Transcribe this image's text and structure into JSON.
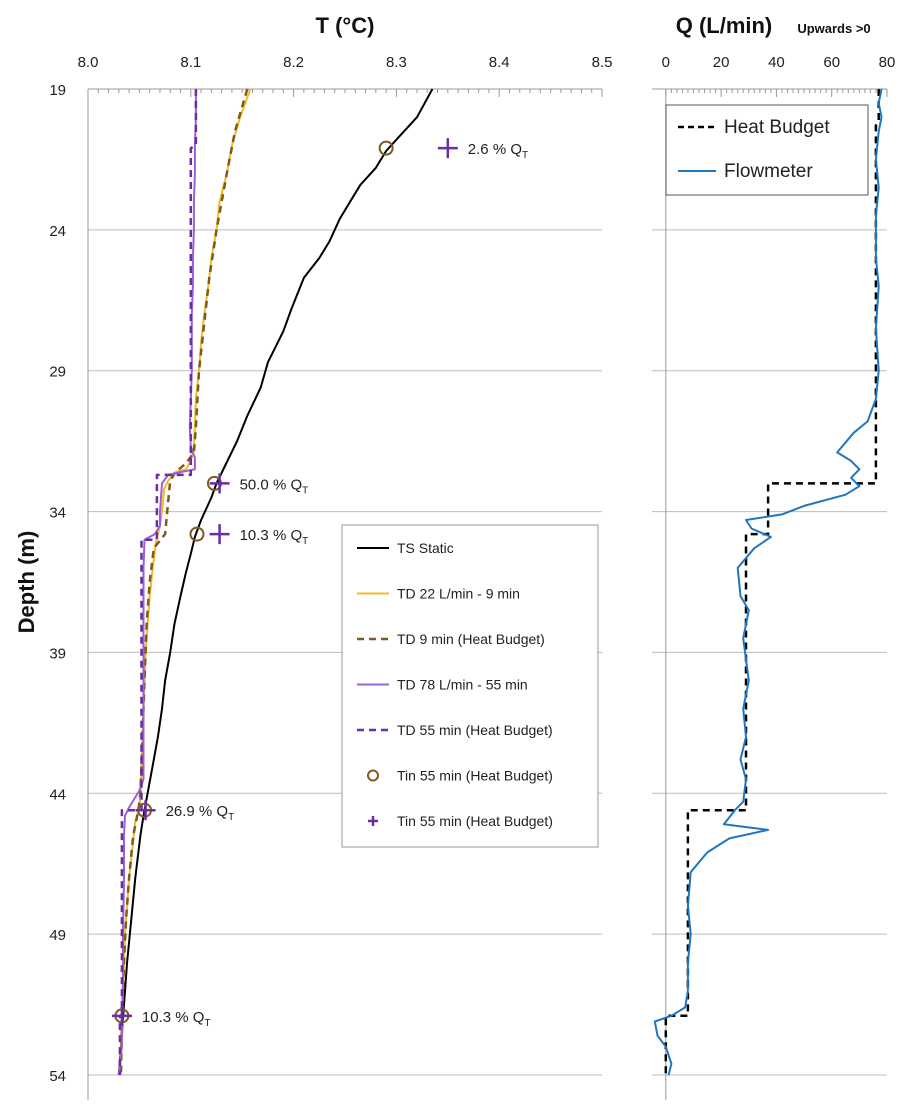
{
  "chart_data": [
    {
      "type": "line",
      "title": "T (°C)",
      "ylabel": "Depth (m)",
      "xlim": [
        8.0,
        8.5
      ],
      "ylim": [
        19,
        54
      ],
      "y_inverted": true,
      "x_ticks": [
        "8.0",
        "8.1",
        "8.2",
        "8.3",
        "8.4",
        "8.5"
      ],
      "y_ticks": [
        "19",
        "24",
        "29",
        "34",
        "39",
        "44",
        "49",
        "54"
      ],
      "grid": "horizontal",
      "legend_position": "center-right",
      "colors": {
        "ts_static": "#000000",
        "td22": "#f5b921",
        "td9_hb": "#7d5a1e",
        "tin55_circle": "#7d5a1e",
        "td78": "#9b5fd6",
        "td55_hb": "#6a2ea3",
        "tin55_plus": "#6a2ea3"
      },
      "series": [
        {
          "name": "TS Static",
          "style": "solid",
          "color": "#000000",
          "points": [
            [
              8.335,
              19
            ],
            [
              8.32,
              20
            ],
            [
              8.305,
              20.6
            ],
            [
              8.29,
              21.2
            ],
            [
              8.28,
              21.8
            ],
            [
              8.265,
              22.4
            ],
            [
              8.255,
              23
            ],
            [
              8.245,
              23.6
            ],
            [
              8.235,
              24.4
            ],
            [
              8.225,
              25
            ],
            [
              8.21,
              25.7
            ],
            [
              8.198,
              26.8
            ],
            [
              8.19,
              27.6
            ],
            [
              8.175,
              28.7
            ],
            [
              8.168,
              29.6
            ],
            [
              8.155,
              30.6
            ],
            [
              8.145,
              31.5
            ],
            [
              8.133,
              32.4
            ],
            [
              8.125,
              33
            ],
            [
              8.12,
              33.5
            ],
            [
              8.11,
              34.3
            ],
            [
              8.104,
              34.9
            ],
            [
              8.1,
              35.5
            ],
            [
              8.095,
              36.2
            ],
            [
              8.09,
              37
            ],
            [
              8.084,
              38
            ],
            [
              8.08,
              39
            ],
            [
              8.075,
              40
            ],
            [
              8.072,
              41
            ],
            [
              8.068,
              42
            ],
            [
              8.063,
              43
            ],
            [
              8.058,
              44
            ],
            [
              8.054,
              44.8
            ],
            [
              8.051,
              45.5
            ],
            [
              8.046,
              47
            ],
            [
              8.042,
              48.5
            ],
            [
              8.038,
              50
            ],
            [
              8.035,
              51.5
            ],
            [
              8.033,
              52.5
            ],
            [
              8.031,
              53.5
            ],
            [
              8.03,
              54
            ]
          ]
        },
        {
          "name": "TD 22 L/min - 9 min",
          "style": "solid",
          "color": "#f5b921",
          "points": [
            [
              8.158,
              19
            ],
            [
              8.148,
              20
            ],
            [
              8.14,
              21
            ],
            [
              8.135,
              22
            ],
            [
              8.128,
              23
            ],
            [
              8.125,
              24
            ],
            [
              8.12,
              25
            ],
            [
              8.117,
              26
            ],
            [
              8.113,
              27
            ],
            [
              8.11,
              28
            ],
            [
              8.108,
              29
            ],
            [
              8.105,
              30
            ],
            [
              8.104,
              31
            ],
            [
              8.103,
              31.7
            ],
            [
              8.1,
              32.2
            ],
            [
              8.095,
              32.5
            ],
            [
              8.085,
              32.6
            ],
            [
              8.078,
              32.9
            ],
            [
              8.074,
              33.2
            ],
            [
              8.072,
              34
            ],
            [
              8.07,
              34.5
            ],
            [
              8.066,
              35.1
            ],
            [
              8.063,
              36
            ],
            [
              8.06,
              37
            ],
            [
              8.058,
              38
            ],
            [
              8.056,
              39
            ],
            [
              8.055,
              40
            ],
            [
              8.054,
              41
            ],
            [
              8.053,
              42
            ],
            [
              8.052,
              43
            ],
            [
              8.051,
              44
            ],
            [
              8.05,
              44.5
            ],
            [
              8.046,
              45
            ],
            [
              8.043,
              46
            ],
            [
              8.04,
              47
            ],
            [
              8.038,
              48
            ],
            [
              8.036,
              49
            ],
            [
              8.035,
              50
            ],
            [
              8.034,
              51
            ],
            [
              8.033,
              52
            ],
            [
              8.032,
              53
            ],
            [
              8.031,
              54
            ]
          ]
        },
        {
          "name": "TD 9 min (Heat Budget)",
          "style": "dashed",
          "color": "#7d5a1e",
          "points": [
            [
              8.155,
              19
            ],
            [
              8.143,
              20.5
            ],
            [
              8.135,
              22
            ],
            [
              8.125,
              24
            ],
            [
              8.118,
              25.7
            ],
            [
              8.114,
              27
            ],
            [
              8.108,
              29
            ],
            [
              8.105,
              31
            ],
            [
              8.103,
              31.9
            ],
            [
              8.095,
              32.3
            ],
            [
              8.085,
              32.6
            ],
            [
              8.08,
              32.9
            ],
            [
              8.077,
              34
            ],
            [
              8.075,
              34.8
            ],
            [
              8.064,
              35.3
            ],
            [
              8.06,
              36.5
            ],
            [
              8.057,
              38
            ],
            [
              8.055,
              40
            ],
            [
              8.053,
              42
            ],
            [
              8.051,
              44
            ],
            [
              8.049,
              44.6
            ],
            [
              8.044,
              45.5
            ],
            [
              8.04,
              47
            ],
            [
              8.037,
              48.5
            ],
            [
              8.035,
              50
            ],
            [
              8.034,
              51
            ],
            [
              8.033,
              52.5
            ],
            [
              8.032,
              54
            ]
          ]
        },
        {
          "name": "TD 78 L/min - 55 min",
          "style": "solid",
          "color": "#9b5fd6",
          "points": [
            [
              8.105,
              19
            ],
            [
              8.105,
              20
            ],
            [
              8.104,
              21
            ],
            [
              8.104,
              22
            ],
            [
              8.103,
              23
            ],
            [
              8.103,
              24
            ],
            [
              8.102,
              25
            ],
            [
              8.102,
              26
            ],
            [
              8.101,
              27
            ],
            [
              8.101,
              28
            ],
            [
              8.101,
              29
            ],
            [
              8.1,
              30
            ],
            [
              8.099,
              31
            ],
            [
              8.1,
              31.7
            ],
            [
              8.104,
              32.1
            ],
            [
              8.104,
              32.5
            ],
            [
              8.09,
              32.6
            ],
            [
              8.078,
              32.7
            ],
            [
              8.072,
              33
            ],
            [
              8.071,
              33.5
            ],
            [
              8.07,
              34
            ],
            [
              8.07,
              34.5
            ],
            [
              8.065,
              34.8
            ],
            [
              8.055,
              35
            ],
            [
              8.054,
              36
            ],
            [
              8.054,
              38
            ],
            [
              8.054,
              40
            ],
            [
              8.054,
              42
            ],
            [
              8.054,
              43.5
            ],
            [
              8.05,
              43.9
            ],
            [
              8.045,
              44.2
            ],
            [
              8.04,
              44.5
            ],
            [
              8.036,
              44.8
            ],
            [
              8.035,
              45.5
            ],
            [
              8.035,
              47
            ],
            [
              8.034,
              49
            ],
            [
              8.034,
              51
            ],
            [
              8.033,
              52
            ],
            [
              8.033,
              53
            ],
            [
              8.031,
              53.6
            ],
            [
              8.03,
              54
            ]
          ]
        },
        {
          "name": "TD 55 min (Heat Budget)",
          "style": "dashed",
          "color": "#6a2ea3",
          "points": [
            [
              8.105,
              19
            ],
            [
              8.105,
              21
            ],
            [
              8.1,
              21.1
            ],
            [
              8.1,
              32.7
            ],
            [
              8.067,
              32.7
            ],
            [
              8.067,
              35
            ],
            [
              8.052,
              35
            ],
            [
              8.052,
              44.6
            ],
            [
              8.033,
              44.6
            ],
            [
              8.033,
              51.9
            ],
            [
              8.031,
              51.9
            ],
            [
              8.031,
              54
            ]
          ]
        },
        {
          "name": "Tin 55 min (Heat Budget)",
          "style": "circle",
          "color": "#7d5a1e",
          "points": [
            [
              8.29,
              21.1
            ],
            [
              8.123,
              33
            ],
            [
              8.106,
              34.8
            ],
            [
              8.055,
              44.6
            ],
            [
              8.033,
              51.9
            ]
          ]
        },
        {
          "name": "Tin 55 min (Heat Budget)",
          "style": "plus",
          "color": "#6a2ea3",
          "points": [
            [
              8.35,
              21.1
            ],
            [
              8.128,
              33
            ],
            [
              8.128,
              34.8
            ],
            [
              8.056,
              44.6
            ],
            [
              8.033,
              51.9
            ]
          ]
        }
      ],
      "annotations": [
        {
          "text": "2.6 % Q",
          "sub": "T",
          "x": 8.35,
          "y": 21.1
        },
        {
          "text": "50.0 % Q",
          "sub": "T",
          "x": 8.128,
          "y": 33
        },
        {
          "text": "10.3 % Q",
          "sub": "T",
          "x": 8.128,
          "y": 34.8
        },
        {
          "text": "26.9 % Q",
          "sub": "T",
          "x": 8.056,
          "y": 44.6
        },
        {
          "text": "10.3 % Q",
          "sub": "T",
          "x": 8.033,
          "y": 51.9
        }
      ]
    },
    {
      "type": "line",
      "title": "Q (L/min)",
      "subtitle": "Upwards >0",
      "xlim": [
        -5,
        80
      ],
      "ylim": [
        19,
        54
      ],
      "y_inverted": true,
      "x_ticks": [
        "0",
        "20",
        "40",
        "60",
        "80"
      ],
      "grid": "horizontal",
      "legend_position": "top-right",
      "series": [
        {
          "name": "Heat Budget",
          "style": "dashed",
          "color": "#000000",
          "points": [
            [
              77,
              19
            ],
            [
              77,
              20.1
            ],
            [
              76,
              20.3
            ],
            [
              76,
              33
            ],
            [
              37,
              33
            ],
            [
              37,
              34.8
            ],
            [
              29,
              34.8
            ],
            [
              29,
              44.6
            ],
            [
              8,
              44.6
            ],
            [
              8,
              51.9
            ],
            [
              0,
              51.9
            ],
            [
              0,
              54
            ]
          ]
        },
        {
          "name": "Flowmeter",
          "style": "solid",
          "color": "#1f77c2",
          "points": [
            [
              78,
              19
            ],
            [
              77,
              19.5
            ],
            [
              78,
              20
            ],
            [
              77,
              20.5
            ],
            [
              76,
              21.5
            ],
            [
              77,
              22.5
            ],
            [
              76,
              23.5
            ],
            [
              76,
              25
            ],
            [
              77,
              26
            ],
            [
              76,
              27.5
            ],
            [
              77,
              29
            ],
            [
              76,
              30
            ],
            [
              73,
              30.8
            ],
            [
              68,
              31.2
            ],
            [
              62,
              31.9
            ],
            [
              67,
              32.2
            ],
            [
              70,
              32.5
            ],
            [
              67,
              32.8
            ],
            [
              70,
              33.1
            ],
            [
              65,
              33.4
            ],
            [
              50,
              33.8
            ],
            [
              42,
              34.1
            ],
            [
              29,
              34.3
            ],
            [
              31,
              34.6
            ],
            [
              38,
              34.9
            ],
            [
              32,
              35.3
            ],
            [
              26,
              36
            ],
            [
              27,
              37
            ],
            [
              30,
              37.5
            ],
            [
              28,
              38.5
            ],
            [
              30,
              40
            ],
            [
              28,
              41
            ],
            [
              29,
              42
            ],
            [
              27,
              42.8
            ],
            [
              29,
              43.5
            ],
            [
              28,
              44.3
            ],
            [
              25,
              44.6
            ],
            [
              21,
              45.1
            ],
            [
              37,
              45.3
            ],
            [
              23,
              45.6
            ],
            [
              15,
              46.1
            ],
            [
              9,
              46.8
            ],
            [
              8,
              48
            ],
            [
              9,
              49
            ],
            [
              8,
              50
            ],
            [
              8,
              51
            ],
            [
              7,
              51.6
            ],
            [
              2,
              51.9
            ],
            [
              -4,
              52.1
            ],
            [
              -3,
              52.6
            ],
            [
              0,
              53
            ],
            [
              2,
              53.6
            ],
            [
              1,
              54
            ]
          ]
        }
      ]
    }
  ]
}
